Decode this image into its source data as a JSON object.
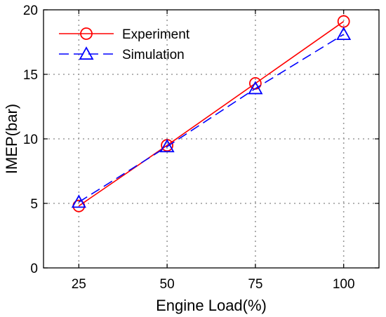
{
  "chart_data": {
    "type": "line",
    "title": "",
    "xlabel": "Engine Load(%)",
    "ylabel": "IMEP(bar)",
    "x": [
      25,
      50,
      75,
      100
    ],
    "xticks": [
      "25",
      "50",
      "75",
      "100"
    ],
    "yticks": [
      "0",
      "5",
      "10",
      "15",
      "20"
    ],
    "xlim": [
      15,
      110
    ],
    "ylim": [
      0,
      20
    ],
    "grid": true,
    "legend_position": "top-left",
    "series": [
      {
        "name": "Experiment",
        "values": [
          4.8,
          9.5,
          14.3,
          19.1
        ],
        "color": "#ff0000",
        "line_style": "solid",
        "marker": "circle"
      },
      {
        "name": "Simulation",
        "values": [
          5.1,
          9.4,
          13.9,
          18.1
        ],
        "color": "#0000ff",
        "line_style": "dashed",
        "marker": "triangle"
      }
    ]
  }
}
